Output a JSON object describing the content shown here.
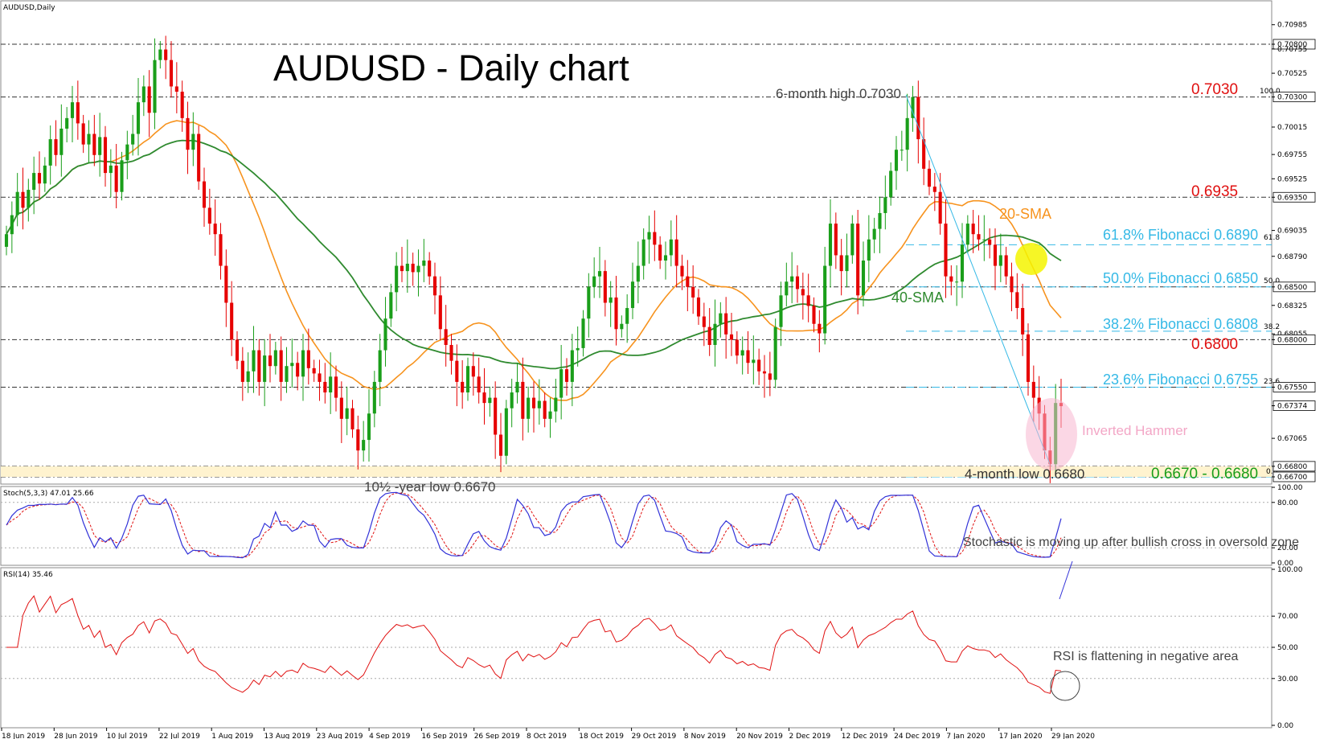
{
  "window_title": "AUDUSD,Daily",
  "chart_data": {
    "type": "candlestick",
    "title": "AUDUSD - Daily chart",
    "symbol": "AUDUSD",
    "timeframe": "Daily",
    "ylim": [
      0.6655,
      0.7098
    ],
    "price_ticks": [
      "0.70985",
      "0.70800",
      "0.70755",
      "0.70525",
      "0.70300",
      "0.70015",
      "0.69755",
      "0.69525",
      "0.69350",
      "0.69035",
      "0.68790",
      "0.68500",
      "0.68325",
      "0.68055",
      "0.68000",
      "0.67550",
      "0.67374",
      "0.67065",
      "0.66800",
      "0.66700"
    ],
    "x_ticks": [
      "18 Jun 2019",
      "28 Jun 2019",
      "10 Jul 2019",
      "22 Jul 2019",
      "1 Aug 2019",
      "13 Aug 2019",
      "23 Aug 2019",
      "4 Sep 2019",
      "16 Sep 2019",
      "26 Sep 2019",
      "8 Oct 2019",
      "18 Oct 2019",
      "29 Oct 2019",
      "8 Nov 2019",
      "20 Nov 2019",
      "2 Dec 2019",
      "12 Dec 2019",
      "24 Dec 2019",
      "7 Jan 2020",
      "17 Jan 2020",
      "29 Jan 2020"
    ],
    "close": [
      0.69,
      0.6918,
      0.694,
      0.6925,
      0.6942,
      0.6958,
      0.6948,
      0.6965,
      0.699,
      0.6975,
      0.7,
      0.701,
      0.7025,
      0.7005,
      0.6985,
      0.6995,
      0.6975,
      0.6992,
      0.6958,
      0.6965,
      0.694,
      0.697,
      0.6985,
      0.6995,
      0.7025,
      0.704,
      0.7015,
      0.7065,
      0.7075,
      0.7065,
      0.704,
      0.7035,
      0.701,
      0.698,
      0.6995,
      0.695,
      0.6925,
      0.691,
      0.69,
      0.687,
      0.6835,
      0.68,
      0.678,
      0.676,
      0.677,
      0.679,
      0.676,
      0.6785,
      0.6775,
      0.679,
      0.676,
      0.6775,
      0.6778,
      0.6765,
      0.679,
      0.6773,
      0.6768,
      0.676,
      0.675,
      0.6765,
      0.6745,
      0.6725,
      0.6735,
      0.6715,
      0.6695,
      0.6705,
      0.673,
      0.676,
      0.679,
      0.682,
      0.6845,
      0.687,
      0.6865,
      0.6872,
      0.6864,
      0.687,
      0.6875,
      0.686,
      0.6842,
      0.681,
      0.6795,
      0.678,
      0.676,
      0.675,
      0.6775,
      0.6765,
      0.675,
      0.674,
      0.6745,
      0.671,
      0.669,
      0.6735,
      0.675,
      0.676,
      0.6725,
      0.6745,
      0.6735,
      0.6742,
      0.6725,
      0.6732,
      0.6745,
      0.6772,
      0.676,
      0.679,
      0.6792,
      0.682,
      0.685,
      0.686,
      0.6865,
      0.6835,
      0.684,
      0.681,
      0.6815,
      0.683,
      0.6855,
      0.687,
      0.6895,
      0.6902,
      0.689,
      0.6875,
      0.688,
      0.6895,
      0.687,
      0.686,
      0.685,
      0.684,
      0.6822,
      0.6812,
      0.6795,
      0.6815,
      0.6825,
      0.6805,
      0.68,
      0.6785,
      0.679,
      0.6778,
      0.6781,
      0.677,
      0.6768,
      0.6762,
      0.6812,
      0.6842,
      0.6855,
      0.686,
      0.6848,
      0.6842,
      0.6832,
      0.6815,
      0.6806,
      0.687,
      0.691,
      0.688,
      0.6865,
      0.688,
      0.691,
      0.6842,
      0.6875,
      0.6895,
      0.6905,
      0.692,
      0.6935,
      0.696,
      0.698,
      0.698,
      0.701,
      0.703,
      0.699,
      0.6962,
      0.6945,
      0.694,
      0.691,
      0.686,
      0.6855,
      0.6855,
      0.689,
      0.691,
      0.69,
      0.6895,
      0.6895,
      0.689,
      0.687,
      0.688,
      0.686,
      0.6845,
      0.683,
      0.6805,
      0.676,
      0.6745,
      0.673,
      0.6695,
      0.6682,
      0.674,
      0.6737
    ]
  },
  "labels": {
    "six_month_high": "6-month high 0.7030",
    "level_7030": "0.7030",
    "level_6935": "0.6935",
    "level_6800": "0.6800",
    "sma20": "20-SMA",
    "sma40": "40-SMA",
    "fib618": "61.8% Fibonacci 0.6890",
    "fib500": "50.0% Fibonacci 0.6850",
    "fib382": "38.2% Fibonacci 0.6808",
    "fib236": "23.6% Fibonacci 0.6755",
    "fib_small_100": "100.0",
    "fib_small_618": "61.8",
    "fib_small_500": "50.0",
    "fib_small_382": "38.2",
    "fib_small_236": "23.6",
    "fib_small_0": "0.0",
    "inverted_hammer": "Inverted Hammer",
    "four_month_low": "4-month low 0.6680",
    "support_zone": "0.6670 - 0.6680",
    "ten_year_low": "10½ -year low 0.6670"
  },
  "stoch": {
    "title": "Stoch(5,3,3) 47.01 25.66",
    "ticks": [
      "100.00",
      "80.00",
      "20.00",
      "0.00"
    ],
    "annotation": "Stochastic is moving up after bullish cross in oversold zone"
  },
  "rsi": {
    "title": "RSI(14) 35.46",
    "ticks": [
      "100.00",
      "70.00",
      "50.00",
      "30.00",
      "0.00"
    ],
    "annotation": "RSI is flattening  in negative area"
  },
  "colors": {
    "bull": "#1a9e1a",
    "bear": "#e60000",
    "sma20": "#f7931e",
    "sma40": "#2f8a2f",
    "fib": "#35b9e6",
    "red_text": "#e01010",
    "stoch_main": "#3232d8",
    "stoch_signal": "#e01010",
    "rsi": "#e01010"
  }
}
